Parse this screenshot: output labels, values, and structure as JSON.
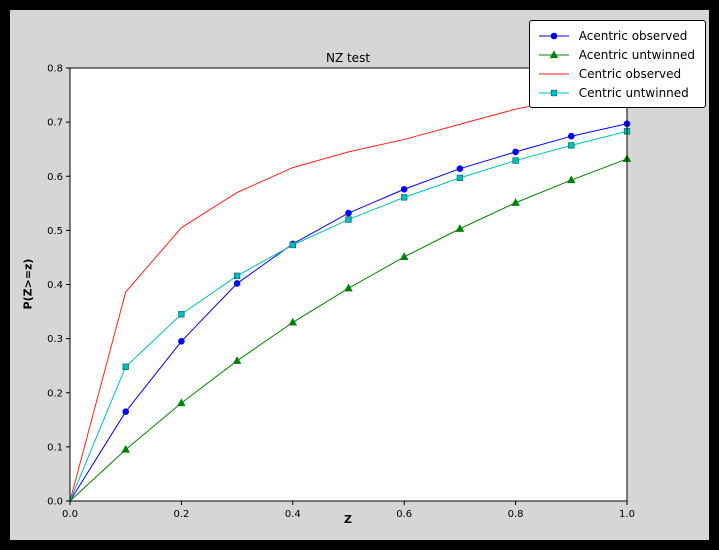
{
  "window": {
    "background": "#000000",
    "figure_background": "#d6d6d6"
  },
  "chart": {
    "title": "NZ test",
    "xlabel": "Z",
    "ylabel": "P(Z>=z)",
    "plot_background": "#ffffff",
    "xticks": [
      "0.0",
      "0.2",
      "0.4",
      "0.6",
      "0.8",
      "1.0"
    ],
    "yticks": [
      "0.0",
      "0.1",
      "0.2",
      "0.3",
      "0.4",
      "0.5",
      "0.6",
      "0.7",
      "0.8"
    ],
    "legend_position": "upper right",
    "grid": false
  },
  "chart_data": {
    "type": "line",
    "title": "NZ test",
    "xlabel": "Z",
    "ylabel": "P(Z>=z)",
    "xlim": [
      0.0,
      1.0
    ],
    "ylim": [
      0.0,
      0.8
    ],
    "x": [
      0.0,
      0.1,
      0.2,
      0.3,
      0.4,
      0.5,
      0.6,
      0.7,
      0.8,
      0.9,
      1.0
    ],
    "series": [
      {
        "name": "Acentric observed",
        "color": "#0000ff",
        "marker": "circle",
        "values": [
          0.0,
          0.165,
          0.295,
          0.402,
          0.475,
          0.532,
          0.576,
          0.614,
          0.645,
          0.674,
          0.697
        ]
      },
      {
        "name": "Acentric untwinned",
        "color": "#008000",
        "marker": "triangle",
        "values": [
          0.0,
          0.095,
          0.181,
          0.259,
          0.33,
          0.393,
          0.451,
          0.503,
          0.551,
          0.593,
          0.632
        ]
      },
      {
        "name": "Centric observed",
        "color": "#ff2219",
        "marker": "none",
        "values": [
          0.0,
          0.386,
          0.505,
          0.57,
          0.616,
          0.645,
          0.668,
          0.696,
          0.724,
          0.744,
          0.758
        ]
      },
      {
        "name": "Centric untwinned",
        "color": "#00bfbf",
        "marker": "square",
        "values": [
          0.0,
          0.248,
          0.345,
          0.416,
          0.473,
          0.52,
          0.561,
          0.597,
          0.629,
          0.657,
          0.683
        ]
      }
    ]
  }
}
